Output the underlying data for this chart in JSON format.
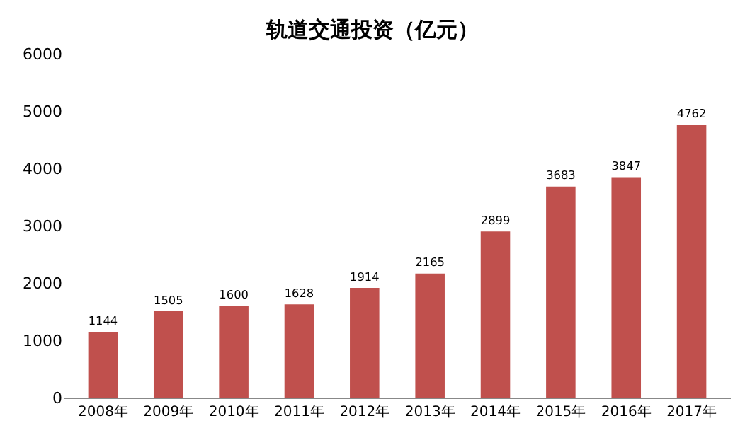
{
  "chart_data": {
    "type": "bar",
    "title": "轨道交通投资（亿元）",
    "categories": [
      "2008年",
      "2009年",
      "2010年",
      "2011年",
      "2012年",
      "2013年",
      "2014年",
      "2015年",
      "2016年",
      "2017年"
    ],
    "values": [
      1144,
      1505,
      1600,
      1628,
      1914,
      2165,
      2899,
      3683,
      3847,
      4762
    ],
    "color": "#c0504d",
    "ylim": [
      0,
      6000
    ],
    "yticks": [
      0,
      1000,
      2000,
      3000,
      4000,
      5000,
      6000
    ],
    "data_labels": true,
    "grid": false
  }
}
